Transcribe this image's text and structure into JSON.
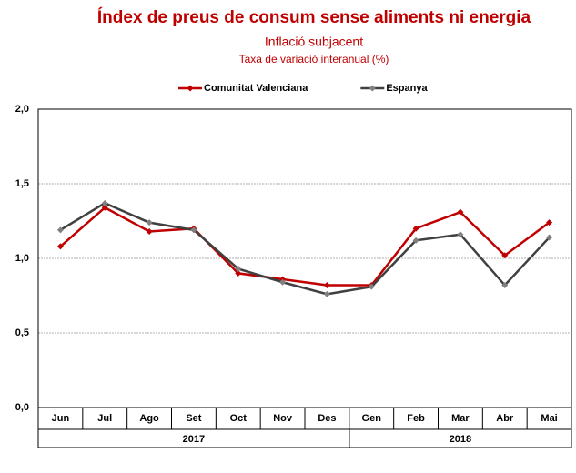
{
  "chart_data": {
    "type": "line",
    "title": "Índex de preus de consum sense aliments ni energia",
    "subtitle": "Inflació subjacent",
    "y_label": "Taxa de variació interanual (%)",
    "categories": [
      "Jun",
      "Jul",
      "Ago",
      "Set",
      "Oct",
      "Nov",
      "Des",
      "Gen",
      "Feb",
      "Mar",
      "Abr",
      "Mai"
    ],
    "year_groups": [
      {
        "label": "2017",
        "span": 7
      },
      {
        "label": "2018",
        "span": 5
      }
    ],
    "series": [
      {
        "name": "Comunitat Valenciana",
        "color": "#c00000",
        "values": [
          1.08,
          1.34,
          1.18,
          1.2,
          0.9,
          0.86,
          0.82,
          0.82,
          1.2,
          1.31,
          1.02,
          1.24
        ]
      },
      {
        "name": "Espanya",
        "color": "#404040",
        "values": [
          1.19,
          1.37,
          1.24,
          1.19,
          0.93,
          0.84,
          0.76,
          0.81,
          1.12,
          1.16,
          0.82,
          1.14
        ]
      }
    ],
    "ylim": [
      0,
      2
    ],
    "yticks": [
      {
        "value": 0,
        "label": "0,0"
      },
      {
        "value": 0.5,
        "label": "0,5"
      },
      {
        "value": 1,
        "label": "1,0"
      },
      {
        "value": 1.5,
        "label": "1,5"
      },
      {
        "value": 2,
        "label": "2,0"
      }
    ],
    "grid": true,
    "legend": "top"
  }
}
